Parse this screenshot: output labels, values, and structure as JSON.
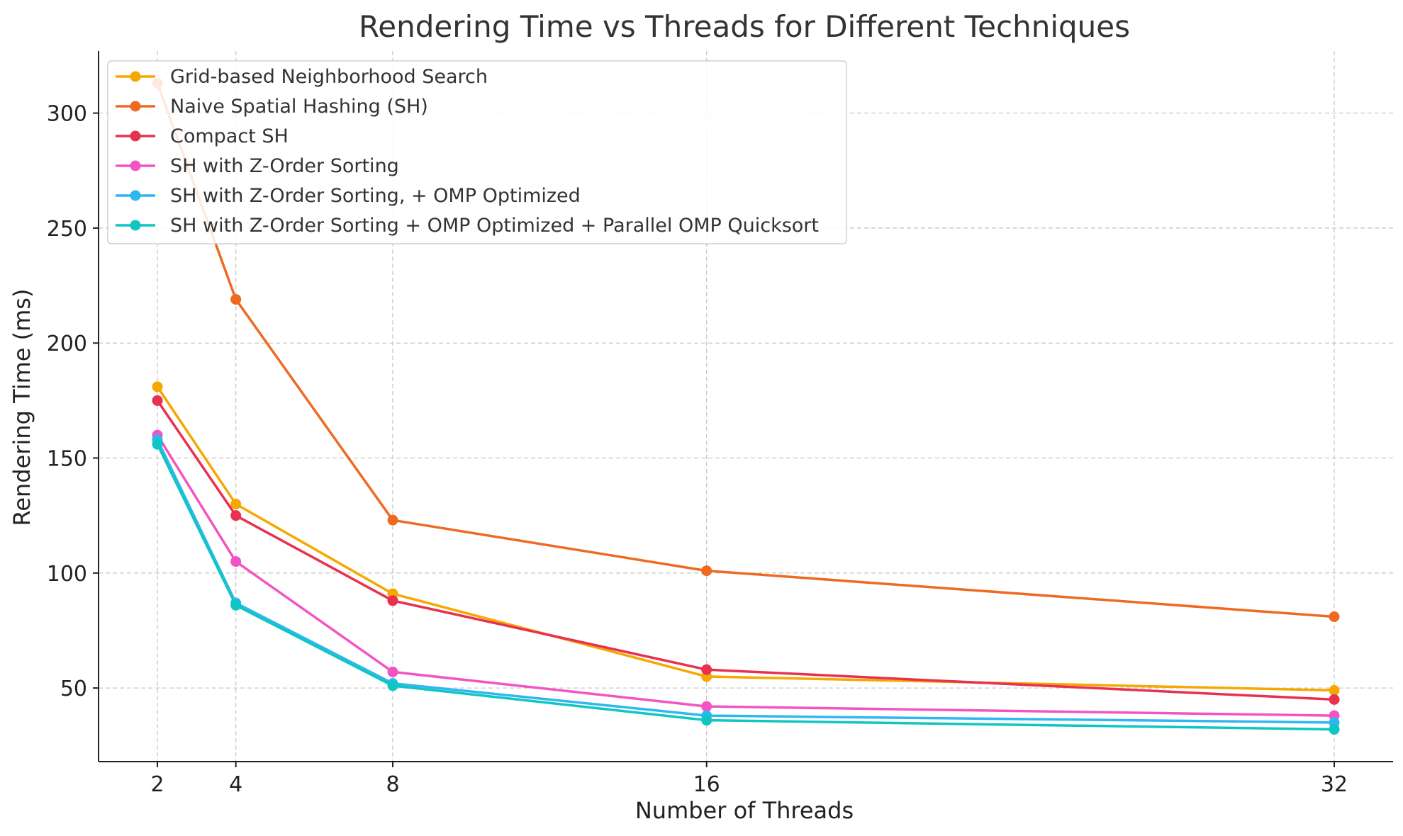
{
  "chart_data": {
    "type": "line",
    "title": "Rendering Time vs Threads for Different Techniques",
    "xlabel": "Number of Threads",
    "ylabel": "Rendering Time (ms)",
    "x": [
      2,
      4,
      8,
      16,
      32
    ],
    "xlim": [
      0.5,
      33.5
    ],
    "ylim": [
      18,
      327
    ],
    "xticks": [
      2,
      4,
      8,
      16,
      32
    ],
    "yticks": [
      50,
      100,
      150,
      200,
      250,
      300
    ],
    "grid": true,
    "legend_position": "top-left",
    "series": [
      {
        "name": "Grid-based Neighborhood Search",
        "color": "#f5a800",
        "values": [
          181,
          130,
          91,
          55,
          49
        ]
      },
      {
        "name": "Naive Spatial Hashing (SH)",
        "color": "#ee6a23",
        "values": [
          313,
          219,
          123,
          101,
          81
        ]
      },
      {
        "name": "Compact SH",
        "color": "#e8314f",
        "values": [
          175,
          125,
          88,
          58,
          45
        ]
      },
      {
        "name": "SH with Z-Order Sorting",
        "color": "#f255c3",
        "values": [
          160,
          105,
          57,
          42,
          38
        ]
      },
      {
        "name": "SH with Z-Order Sorting, + OMP Optimized",
        "color": "#2fb7f0",
        "values": [
          158,
          87,
          52,
          38,
          35
        ]
      },
      {
        "name": "SH with Z-Order Sorting + OMP Optimized + Parallel OMP Quicksort",
        "color": "#0fc6c2",
        "values": [
          156,
          86,
          51,
          36,
          32
        ]
      }
    ]
  }
}
